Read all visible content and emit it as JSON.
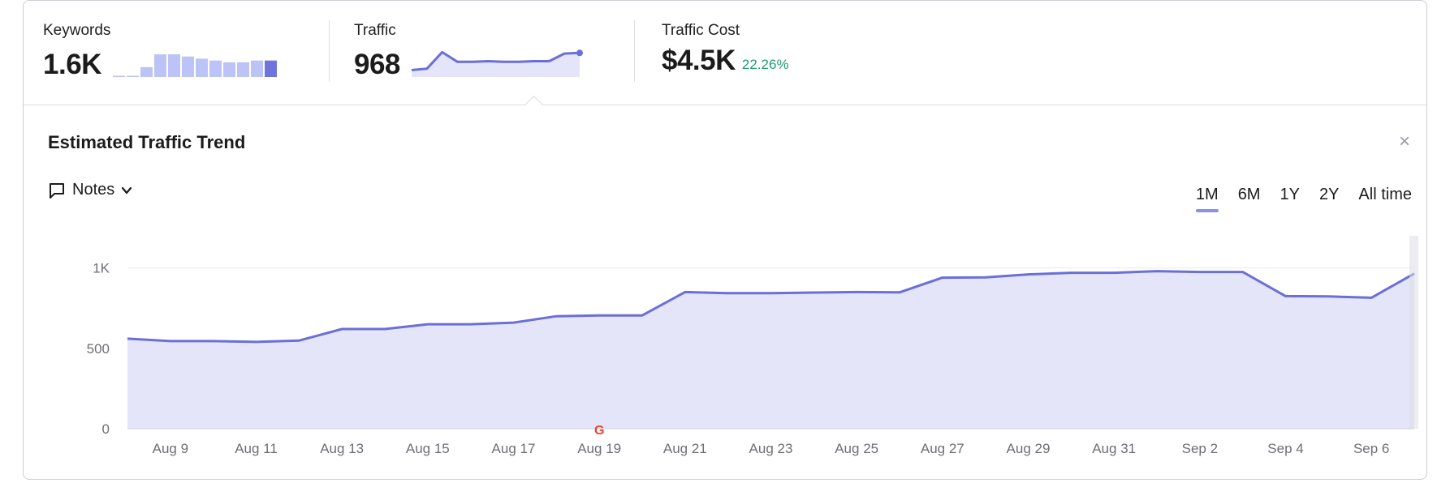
{
  "metrics": {
    "keywords": {
      "label": "Keywords",
      "value": "1.6K",
      "bars": [
        1,
        2,
        27,
        62,
        62,
        56,
        50,
        45,
        40,
        40,
        45,
        45
      ]
    },
    "traffic": {
      "label": "Traffic",
      "value": "968",
      "points": [
        10,
        12,
        36,
        22,
        22,
        23,
        22,
        22,
        23,
        23,
        34,
        35
      ]
    },
    "cost": {
      "label": "Traffic Cost",
      "value": "$4.5K",
      "change": "22.26%"
    }
  },
  "trend": {
    "title": "Estimated Traffic Trend",
    "close": "×",
    "notes_label": "Notes",
    "ranges": [
      "1M",
      "6M",
      "1Y",
      "2Y",
      "All time"
    ],
    "active_range": "1M"
  },
  "chart_data": {
    "type": "area",
    "title": "",
    "xlabel": "",
    "ylabel": "",
    "ylim": [
      0,
      1000
    ],
    "grid": true,
    "yticks": [
      "0",
      "500",
      "1K"
    ],
    "xtick_labels": [
      "Aug 9",
      "Aug 11",
      "Aug 13",
      "Aug 15",
      "Aug 17",
      "Aug 19",
      "Aug 21",
      "Aug 23",
      "Aug 25",
      "Aug 27",
      "Aug 29",
      "Aug 31",
      "Sep 2",
      "Sep 4",
      "Sep 6"
    ],
    "annotations": [
      {
        "x": "Aug 19",
        "label": "G",
        "icon": "google-update-icon"
      }
    ],
    "x": [
      "Aug 8",
      "Aug 9",
      "Aug 10",
      "Aug 11",
      "Aug 12",
      "Aug 13",
      "Aug 14",
      "Aug 15",
      "Aug 16",
      "Aug 17",
      "Aug 18",
      "Aug 19",
      "Aug 20",
      "Aug 21",
      "Aug 22",
      "Aug 23",
      "Aug 24",
      "Aug 25",
      "Aug 26",
      "Aug 27",
      "Aug 28",
      "Aug 29",
      "Aug 30",
      "Aug 31",
      "Sep 1",
      "Sep 2",
      "Sep 3",
      "Sep 4",
      "Sep 5",
      "Sep 6",
      "Sep 7"
    ],
    "series": [
      {
        "values": [
          560,
          545,
          545,
          540,
          548,
          620,
          620,
          650,
          650,
          660,
          700,
          705,
          705,
          850,
          843,
          843,
          847,
          850,
          848,
          940,
          942,
          960,
          970,
          970,
          980,
          975,
          975,
          825,
          823,
          815,
          965
        ]
      }
    ],
    "colors": {
      "line": "#6b6fd6",
      "fill": "#e4e5f8",
      "grid": "#ececf0",
      "keyword_bar": "#bcc3f7",
      "keyword_bar_last": "#6e74dc"
    }
  }
}
